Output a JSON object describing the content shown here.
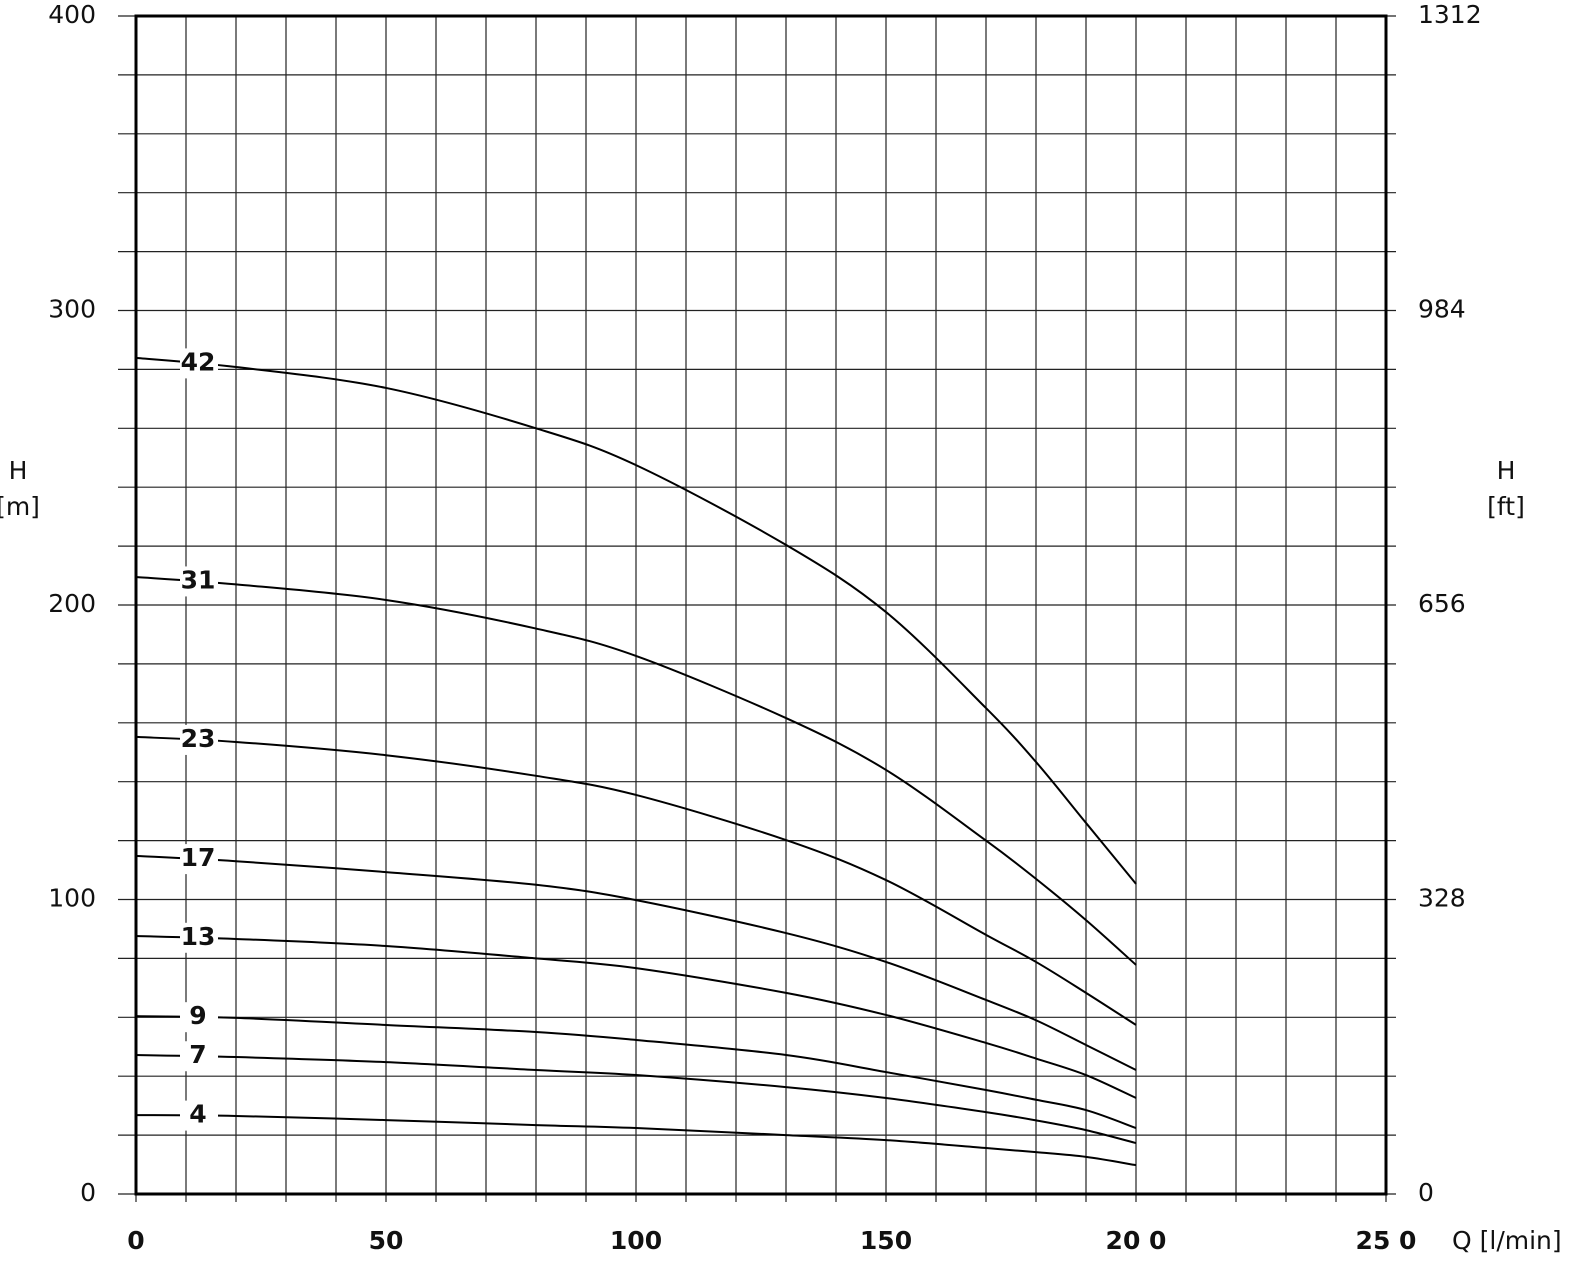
{
  "chart_data": {
    "type": "line",
    "y_label": "H",
    "y_unit": "[m]",
    "y2_label": "H",
    "y2_unit": "[ft]",
    "x_label": "Q [l/min]",
    "x": [
      0,
      20,
      50,
      80,
      100,
      130,
      150,
      170,
      180,
      190,
      200
    ],
    "series": [
      {
        "name": "42",
        "color": "#000000",
        "values": [
          283.9,
          280.8,
          273.7,
          260,
          247.5,
          220.4,
          197.6,
          165,
          146.7,
          126,
          105.3
        ]
      },
      {
        "name": "31",
        "color": "#000000",
        "values": [
          209.5,
          207,
          201.7,
          192,
          182.7,
          161.6,
          144,
          120,
          107,
          93,
          77.8
        ]
      },
      {
        "name": "23",
        "color": "#000000",
        "values": [
          155.2,
          153.5,
          149,
          142,
          135.5,
          120.2,
          106.6,
          88,
          78.8,
          68.3,
          57.4
        ]
      },
      {
        "name": "17",
        "color": "#000000",
        "values": [
          114.8,
          113,
          109.3,
          105,
          99.8,
          88.6,
          78.8,
          65.9,
          59,
          50.6,
          42.1
        ]
      },
      {
        "name": "13",
        "color": "#000000",
        "values": [
          87.6,
          86.6,
          84.2,
          80,
          76.7,
          68.3,
          60.8,
          51.3,
          46,
          40.4,
          32.6
        ]
      },
      {
        "name": "9",
        "color": "#000000",
        "values": [
          60.4,
          59.8,
          57.4,
          55,
          52.3,
          47.2,
          41.4,
          35.3,
          32,
          28.5,
          22.4
        ]
      },
      {
        "name": "7",
        "color": "#000000",
        "values": [
          47.2,
          46.5,
          44.8,
          42.1,
          40.4,
          36.3,
          32.6,
          27.8,
          25,
          21.7,
          17.3
        ]
      },
      {
        "name": "4",
        "color": "#000000",
        "values": [
          26.8,
          26.5,
          25.1,
          23.4,
          22.4,
          20,
          18.3,
          15.6,
          14.2,
          12.6,
          9.8
        ]
      }
    ],
    "xlim": [
      0,
      250
    ],
    "xticks": [
      0,
      50,
      100,
      150,
      {
        "value": 200,
        "label": "20 0"
      },
      {
        "value": 250,
        "label": "25 0"
      }
    ],
    "ylim": [
      0,
      400
    ],
    "yticks": [
      0,
      100,
      200,
      300,
      400
    ],
    "y2lim": [
      0,
      1312
    ],
    "y2ticks": [
      0,
      328,
      656,
      984,
      1312
    ],
    "minor_xticks": [
      0,
      10,
      20,
      30,
      40,
      50,
      60,
      70,
      80,
      90,
      100,
      110,
      120,
      130,
      140,
      150,
      160,
      170,
      180,
      190,
      200,
      210,
      220,
      230,
      240,
      250
    ],
    "minor_yticks": [
      0,
      20,
      40,
      60,
      80,
      100,
      120,
      140,
      160,
      180,
      200,
      220,
      240,
      260,
      280,
      300,
      320,
      340,
      360,
      380,
      400
    ],
    "grid": true
  }
}
